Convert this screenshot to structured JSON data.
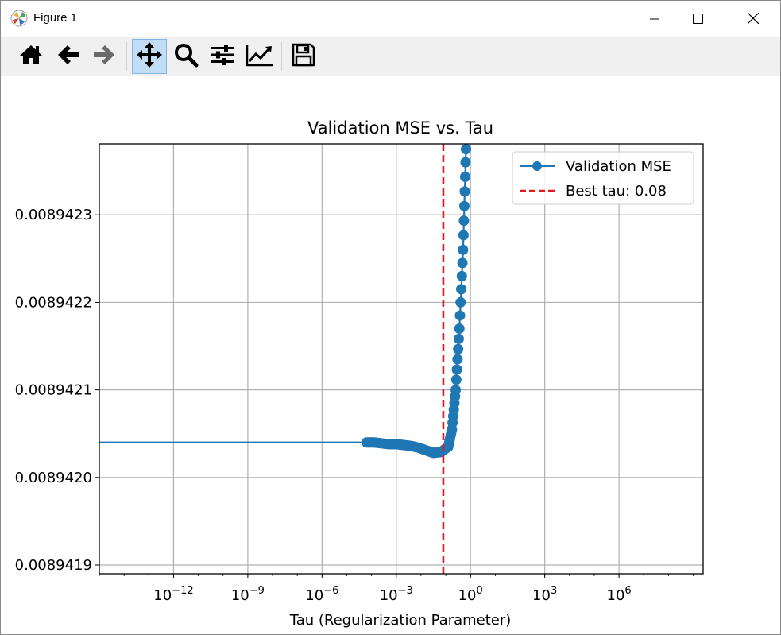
{
  "window": {
    "title": "Figure 1",
    "icons": {
      "app": "matplotlib-logo-icon",
      "minimize": "minimize-icon",
      "maximize": "maximize-icon",
      "close": "close-icon"
    }
  },
  "toolbar": {
    "buttons": [
      {
        "name": "home-button",
        "icon": "home-icon"
      },
      {
        "name": "back-button",
        "icon": "arrow-left-icon"
      },
      {
        "name": "forward-button",
        "icon": "arrow-right-icon"
      },
      {
        "name": "pan-button",
        "icon": "move-icon",
        "active": true
      },
      {
        "name": "zoom-button",
        "icon": "zoom-icon"
      },
      {
        "name": "configure-subplots-button",
        "icon": "sliders-icon"
      },
      {
        "name": "edit-axis-button",
        "icon": "line-chart-icon"
      },
      {
        "name": "save-button",
        "icon": "save-icon"
      }
    ]
  },
  "chart_data": {
    "type": "line",
    "title": "Validation MSE vs. Tau",
    "xlabel": "Tau (Regularization Parameter)",
    "ylabel": "",
    "xscale": "log",
    "xlim_log10": [
      -15,
      9.4
    ],
    "ylim": [
      0.00894189,
      0.008942381
    ],
    "xticks": [
      {
        "exp": -12,
        "base": "10",
        "sup": "−12"
      },
      {
        "exp": -9,
        "base": "10",
        "sup": "−9"
      },
      {
        "exp": -6,
        "base": "10",
        "sup": "−6"
      },
      {
        "exp": -3,
        "base": "10",
        "sup": "−3"
      },
      {
        "exp": 0,
        "base": "10",
        "sup": "0"
      },
      {
        "exp": 3,
        "base": "10",
        "sup": "3"
      },
      {
        "exp": 6,
        "base": "10",
        "sup": "6"
      }
    ],
    "yticks": [
      {
        "value": 0.0089419,
        "label": "0.0089419"
      },
      {
        "value": 0.008942,
        "label": "0.0089420"
      },
      {
        "value": 0.0089421,
        "label": "0.0089421"
      },
      {
        "value": 0.0089422,
        "label": "0.0089422"
      },
      {
        "value": 0.0089423,
        "label": "0.0089423"
      }
    ],
    "grid": true,
    "legend_position": "top-right",
    "series": [
      {
        "name": "Validation MSE",
        "color": "#1f77b4",
        "style": "line-with-markers",
        "line_points_log10": [
          [
            -15,
            0.00894204
          ],
          [
            -4.2,
            0.00894204
          ]
        ],
        "marker_points_log10": [
          [
            -4.2,
            0.00894204
          ],
          [
            -3.9,
            0.00894204
          ],
          [
            -3.6,
            0.008942039
          ],
          [
            -3.3,
            0.008942038
          ],
          [
            -3.0,
            0.008942038
          ],
          [
            -2.7,
            0.008942037
          ],
          [
            -2.4,
            0.008942036
          ],
          [
            -2.1,
            0.008942034
          ],
          [
            -1.8,
            0.008942031
          ],
          [
            -1.5,
            0.008942028
          ],
          [
            -1.2,
            0.008942029
          ],
          [
            -0.9,
            0.008942035
          ],
          [
            -0.75,
            0.008942055
          ],
          [
            -0.6,
            0.0089421
          ],
          [
            -0.45,
            0.00894217
          ],
          [
            -0.3,
            0.00894226
          ],
          [
            -0.2,
            0.00894236
          ],
          [
            -0.1,
            0.00894245
          ]
        ]
      },
      {
        "name": "Best tau: 0.08",
        "color": "#e31a1c",
        "style": "dashed-vline",
        "x_log10": -1.1
      }
    ]
  }
}
